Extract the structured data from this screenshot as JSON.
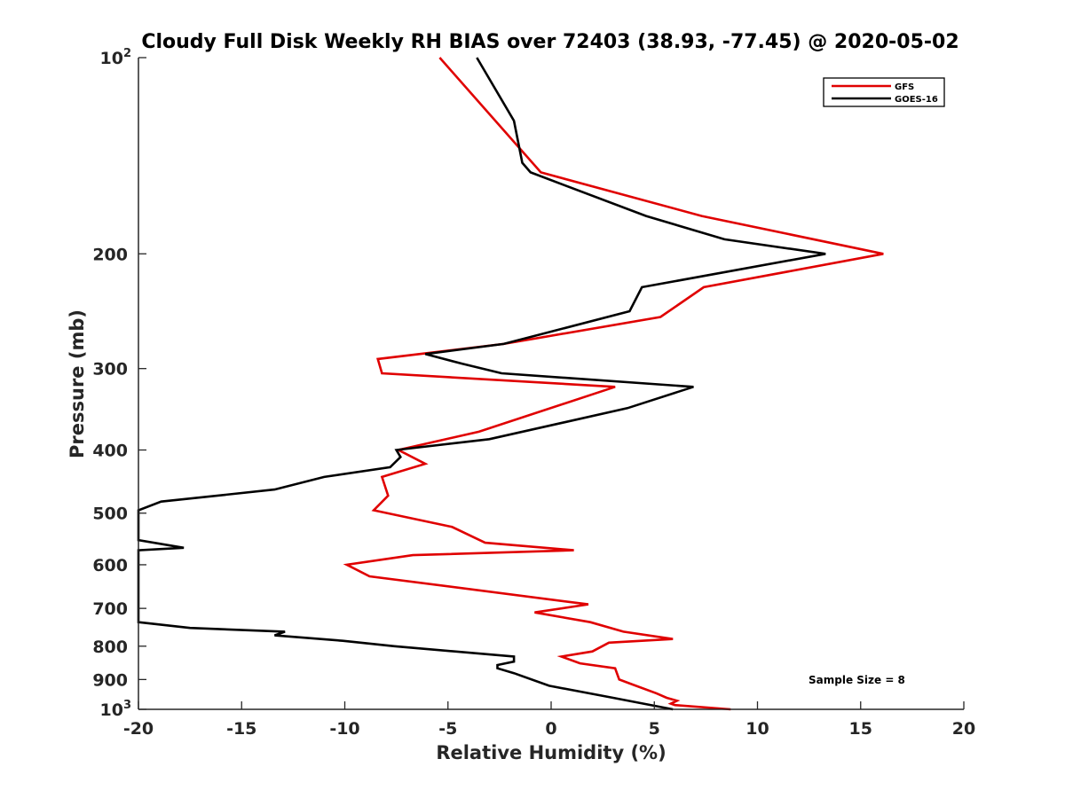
{
  "chart_data": {
    "type": "line",
    "title": "Cloudy Full Disk Weekly RH BIAS over 72403 (38.93, -77.45) @ 2020-05-02",
    "xlabel": "Relative Humidity (%)",
    "ylabel": "Pressure (mb)",
    "xlim": [
      -20,
      20
    ],
    "ylim": [
      100,
      1000
    ],
    "y_scale": "log",
    "y_reversed": true,
    "grid": false,
    "legend_position": "top-right",
    "x_ticks": [
      "-20",
      "-15",
      "-10",
      "-5",
      "0",
      "5",
      "10",
      "15",
      "20"
    ],
    "y_ticks": [
      {
        "value": 100,
        "base": "10",
        "exp": "2"
      },
      {
        "value": 200,
        "label": "200"
      },
      {
        "value": 300,
        "label": "300"
      },
      {
        "value": 400,
        "label": "400"
      },
      {
        "value": 500,
        "label": "500"
      },
      {
        "value": 600,
        "label": "600"
      },
      {
        "value": 700,
        "label": "700"
      },
      {
        "value": 800,
        "label": "800"
      },
      {
        "value": 900,
        "label": "900"
      },
      {
        "value": 1000,
        "base": "10",
        "exp": "3"
      }
    ],
    "annotation": "Sample Size = 8",
    "series": [
      {
        "name": "GFS",
        "color": "#e00000",
        "points": [
          [
            -5.4,
            100
          ],
          [
            -0.5,
            150
          ],
          [
            7.3,
            175
          ],
          [
            16.1,
            200
          ],
          [
            7.4,
            225
          ],
          [
            5.3,
            250
          ],
          [
            -2.3,
            275
          ],
          [
            -8.4,
            290
          ],
          [
            -8.2,
            305
          ],
          [
            3.1,
            320
          ],
          [
            -3.5,
            375
          ],
          [
            -7.4,
            400
          ],
          [
            -6.1,
            420
          ],
          [
            -8.2,
            440
          ],
          [
            -7.9,
            470
          ],
          [
            -8.6,
            495
          ],
          [
            -4.8,
            525
          ],
          [
            -3.2,
            555
          ],
          [
            1.1,
            570
          ],
          [
            -6.7,
            580
          ],
          [
            -9.9,
            600
          ],
          [
            -8.8,
            625
          ],
          [
            1.8,
            690
          ],
          [
            -0.8,
            710
          ],
          [
            1.9,
            735
          ],
          [
            3.5,
            760
          ],
          [
            5.9,
            780
          ],
          [
            2.8,
            790
          ],
          [
            2.0,
            815
          ],
          [
            0.5,
            830
          ],
          [
            1.4,
            850
          ],
          [
            3.1,
            865
          ],
          [
            3.3,
            900
          ],
          [
            3.9,
            915
          ],
          [
            5.1,
            945
          ],
          [
            5.6,
            960
          ],
          [
            6.1,
            970
          ],
          [
            5.8,
            980
          ],
          [
            6.0,
            985
          ],
          [
            8.7,
            1000
          ]
        ]
      },
      {
        "name": "GOES-16",
        "color": "#000000",
        "points": [
          [
            -3.6,
            100
          ],
          [
            -1.8,
            125
          ],
          [
            -1.4,
            145
          ],
          [
            -1.0,
            150
          ],
          [
            4.6,
            175
          ],
          [
            8.4,
            190
          ],
          [
            13.3,
            200
          ],
          [
            4.4,
            225
          ],
          [
            3.8,
            245
          ],
          [
            -2.3,
            275
          ],
          [
            -6.1,
            285
          ],
          [
            -4.3,
            295
          ],
          [
            -2.4,
            305
          ],
          [
            6.9,
            320
          ],
          [
            3.7,
            345
          ],
          [
            -3.0,
            385
          ],
          [
            -7.5,
            400
          ],
          [
            -7.3,
            410
          ],
          [
            -7.8,
            425
          ],
          [
            -11.0,
            440
          ],
          [
            -13.4,
            460
          ],
          [
            -18.9,
            480
          ],
          [
            -20.0,
            495
          ],
          [
            -20.0,
            550
          ],
          [
            -17.8,
            565
          ],
          [
            -20.0,
            570
          ],
          [
            -20.0,
            735
          ],
          [
            -17.5,
            750
          ],
          [
            -12.9,
            760
          ],
          [
            -13.4,
            770
          ],
          [
            -10.1,
            785
          ],
          [
            -7.6,
            800
          ],
          [
            -1.8,
            830
          ],
          [
            -1.8,
            845
          ],
          [
            -2.6,
            855
          ],
          [
            -2.6,
            865
          ],
          [
            -1.8,
            880
          ],
          [
            -0.1,
            920
          ],
          [
            3.0,
            960
          ],
          [
            5.9,
            1000
          ]
        ]
      }
    ]
  }
}
